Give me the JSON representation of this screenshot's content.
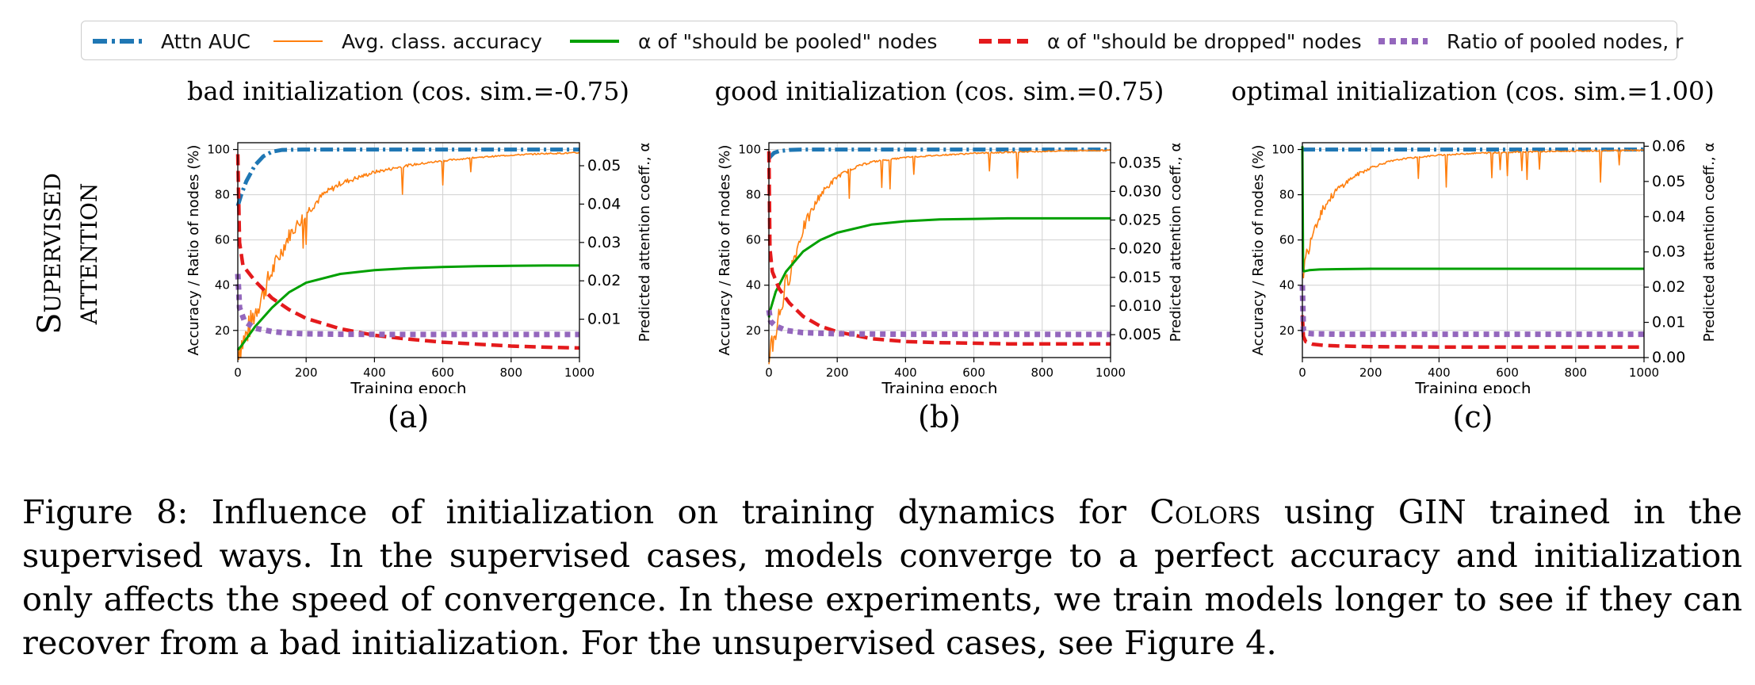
{
  "legend": {
    "items": [
      {
        "label": "Attn AUC",
        "color": "#1f77b4",
        "style": "dashdot"
      },
      {
        "label": "Avg. class. accuracy",
        "color": "#ff7f0e",
        "style": "thin"
      },
      {
        "label": "α of \"should be pooled\" nodes",
        "color": "#00a000",
        "style": "solid"
      },
      {
        "label": "α of \"should be dropped\" nodes",
        "color": "#e41a1c",
        "style": "dashed"
      },
      {
        "label": "Ratio of pooled nodes, r",
        "color": "#9467bd",
        "style": "dotted"
      }
    ]
  },
  "row_label": {
    "line1": "Supervised",
    "line2": "attention"
  },
  "caption": {
    "lines": [
      "Figure 8: Influence of initialization on training dynamics for COLORS using GIN trained in the",
      "supervised ways. In the supervised cases, models converge to a perfect accuracy and initialization",
      "only affects the speed of convergence. In these experiments, we train models longer to see if they can",
      "recover from a bad initialization. For the unsupervised cases, see Figure 4."
    ]
  },
  "chart_data": [
    {
      "type": "line",
      "title": "bad initialization (cos. sim.=-0.75)",
      "panel_label": "(a)",
      "xlabel": "Training epoch",
      "ylabel": "Accuracy / Ratio of nodes (%)",
      "y2label": "Predicted attention coeff., α",
      "xlim": [
        0,
        1000
      ],
      "ylim": [
        8,
        103
      ],
      "y2lim": [
        0.0,
        0.056
      ],
      "xticks": [
        0,
        200,
        400,
        600,
        800,
        1000
      ],
      "yticks": [
        20,
        40,
        60,
        80,
        100
      ],
      "y2ticks": [
        0.01,
        0.02,
        0.03,
        0.04,
        0.05
      ],
      "y2ticklabels": [
        "0.01",
        "0.02",
        "0.03",
        "0.04",
        "0.05"
      ],
      "series": [
        {
          "name": "Attn AUC",
          "axis": "y",
          "x": [
            0,
            10,
            25,
            50,
            75,
            100,
            130,
            200,
            1000
          ],
          "y": [
            75,
            80,
            86,
            93,
            97,
            99,
            99.8,
            100,
            100
          ]
        },
        {
          "name": "Avg. class. accuracy",
          "axis": "y",
          "x": [
            0,
            20,
            50,
            100,
            150,
            200,
            250,
            300,
            400,
            500,
            600,
            700,
            800,
            900,
            1000
          ],
          "y": [
            12,
            16,
            28,
            46,
            62,
            72,
            80,
            85,
            90,
            93,
            95,
            96.5,
            97.5,
            98.2,
            98.5
          ]
        },
        {
          "name": "α of \"should be pooled\" nodes",
          "axis": "y2",
          "x": [
            0,
            10,
            50,
            100,
            150,
            200,
            300,
            400,
            500,
            600,
            700,
            800,
            900,
            1000
          ],
          "y": [
            0.002,
            0.003,
            0.008,
            0.013,
            0.017,
            0.0195,
            0.0218,
            0.0228,
            0.0233,
            0.0236,
            0.0238,
            0.0239,
            0.024,
            0.024
          ]
        },
        {
          "name": "α of \"should be dropped\" nodes",
          "axis": "y2",
          "x": [
            0,
            5,
            15,
            50,
            100,
            150,
            200,
            300,
            400,
            500,
            600,
            700,
            800,
            900,
            1000
          ],
          "y": [
            0.053,
            0.03,
            0.024,
            0.02,
            0.0155,
            0.0125,
            0.0102,
            0.0075,
            0.0058,
            0.0048,
            0.004,
            0.0035,
            0.003,
            0.0027,
            0.0025
          ]
        },
        {
          "name": "Ratio of pooled nodes, r",
          "axis": "y",
          "x": [
            0,
            5,
            20,
            50,
            100,
            150,
            200,
            300,
            500,
            1000
          ],
          "y": [
            45,
            30,
            24,
            21,
            19.5,
            18.8,
            18.5,
            18.3,
            18.2,
            18.2
          ]
        }
      ]
    },
    {
      "type": "line",
      "title": "good initialization (cos. sim.=0.75)",
      "panel_label": "(b)",
      "xlabel": "Training epoch",
      "ylabel": "Accuracy / Ratio of nodes (%)",
      "y2label": "Predicted attention coeff., α",
      "xlim": [
        0,
        1000
      ],
      "ylim": [
        8,
        103
      ],
      "y2lim": [
        0.001,
        0.0385
      ],
      "xticks": [
        0,
        200,
        400,
        600,
        800,
        1000
      ],
      "yticks": [
        20,
        40,
        60,
        80,
        100
      ],
      "y2ticks": [
        0.005,
        0.01,
        0.015,
        0.02,
        0.025,
        0.03,
        0.035
      ],
      "y2ticklabels": [
        "0.005",
        "0.010",
        "0.015",
        "0.020",
        "0.025",
        "0.030",
        "0.035"
      ],
      "series": [
        {
          "name": "Attn AUC",
          "axis": "y",
          "x": [
            0,
            5,
            15,
            30,
            60,
            100,
            1000
          ],
          "y": [
            96,
            97,
            98.5,
            99.3,
            99.8,
            100,
            100
          ]
        },
        {
          "name": "Avg. class. accuracy",
          "axis": "y",
          "x": [
            0,
            20,
            50,
            100,
            150,
            200,
            250,
            300,
            400,
            500,
            600,
            700,
            800,
            900,
            1000
          ],
          "y": [
            10,
            20,
            40,
            65,
            80,
            88,
            92,
            94.5,
            96.5,
            97.5,
            98.3,
            98.8,
            99.2,
            99.5,
            99.6
          ]
        },
        {
          "name": "α of \"should be pooled\" nodes",
          "axis": "y2",
          "x": [
            0,
            5,
            20,
            50,
            100,
            150,
            200,
            300,
            400,
            500,
            600,
            700,
            800,
            900,
            1000
          ],
          "y": [
            0.008,
            0.0095,
            0.0125,
            0.016,
            0.0195,
            0.0215,
            0.0228,
            0.0242,
            0.0248,
            0.0251,
            0.0252,
            0.0253,
            0.0253,
            0.0253,
            0.0253
          ]
        },
        {
          "name": "α of \"should be dropped\" nodes",
          "axis": "y2",
          "x": [
            0,
            3,
            10,
            30,
            60,
            100,
            150,
            200,
            300,
            400,
            500,
            600,
            700,
            800,
            900,
            1000
          ],
          "y": [
            0.037,
            0.02,
            0.016,
            0.013,
            0.0105,
            0.0082,
            0.0065,
            0.0055,
            0.0043,
            0.0038,
            0.0036,
            0.0035,
            0.0034,
            0.0034,
            0.0034,
            0.0034
          ]
        },
        {
          "name": "Ratio of pooled nodes, r",
          "axis": "y",
          "x": [
            0,
            5,
            20,
            50,
            100,
            200,
            400,
            1000
          ],
          "y": [
            29,
            24,
            22,
            20,
            19,
            18.5,
            18.3,
            18.2
          ]
        }
      ]
    },
    {
      "type": "line",
      "title": "optimal initialization (cos. sim.=1.00)",
      "panel_label": "(c)",
      "xlabel": "Training epoch",
      "ylabel": "Accuracy / Ratio of nodes (%)",
      "y2label": "Predicted attention coeff., α",
      "xlim": [
        0,
        1000
      ],
      "ylim": [
        8,
        103
      ],
      "y2lim": [
        0.0,
        0.061
      ],
      "xticks": [
        0,
        200,
        400,
        600,
        800,
        1000
      ],
      "yticks": [
        20,
        40,
        60,
        80,
        100
      ],
      "y2ticks": [
        0.0,
        0.01,
        0.02,
        0.03,
        0.04,
        0.05,
        0.06
      ],
      "y2ticklabels": [
        "0.00",
        "0.01",
        "0.02",
        "0.03",
        "0.04",
        "0.05",
        "0.06"
      ],
      "series": [
        {
          "name": "Attn AUC",
          "axis": "y",
          "x": [
            0,
            1000
          ],
          "y": [
            100,
            100
          ]
        },
        {
          "name": "Avg. class. accuracy",
          "axis": "y",
          "x": [
            0,
            10,
            30,
            60,
            100,
            150,
            200,
            250,
            300,
            400,
            500,
            600,
            700,
            800,
            900,
            1000
          ],
          "y": [
            44,
            52,
            64,
            74,
            82,
            88,
            92,
            94.5,
            96,
            97.5,
            98.3,
            98.8,
            99.1,
            99.3,
            99.5,
            99.6
          ]
        },
        {
          "name": "α of \"should be pooled\" nodes",
          "axis": "y2",
          "x": [
            0,
            2,
            5,
            20,
            50,
            100,
            200,
            400,
            1000
          ],
          "y": [
            0.06,
            0.025,
            0.0245,
            0.0248,
            0.025,
            0.0251,
            0.0252,
            0.0252,
            0.0252
          ]
        },
        {
          "name": "α of \"should be dropped\" nodes",
          "axis": "y2",
          "x": [
            0,
            3,
            10,
            30,
            60,
            100,
            200,
            400,
            1000
          ],
          "y": [
            0.012,
            0.006,
            0.0045,
            0.0038,
            0.0035,
            0.0033,
            0.0031,
            0.003,
            0.003
          ]
        },
        {
          "name": "Ratio of pooled nodes, r",
          "axis": "y",
          "x": [
            0,
            3,
            10,
            30,
            100,
            1000
          ],
          "y": [
            40,
            20,
            18.8,
            18.5,
            18.3,
            18.3
          ]
        }
      ]
    }
  ]
}
